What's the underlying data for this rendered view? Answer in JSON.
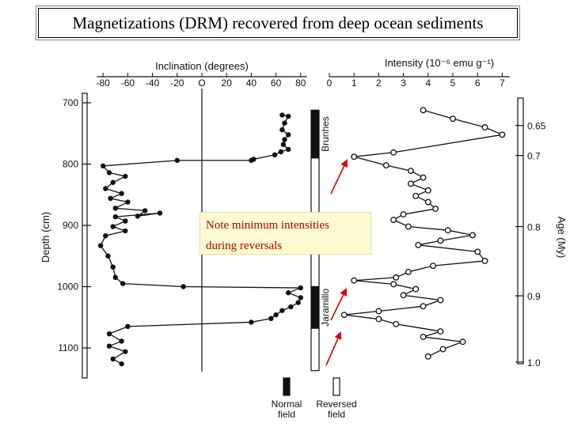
{
  "title": "Magnetizations (DRM) recovered from deep ocean sediments",
  "note": {
    "line1": "Note minimum intensities",
    "line2": "during reversals"
  },
  "chart_data": [
    {
      "type": "line",
      "title": "",
      "xlabel": "Inclination (degrees)",
      "ylabel": "Depth (cm)",
      "xlim": [
        -90,
        90
      ],
      "ylim": [
        700,
        1130
      ],
      "x_ticks": [
        -80,
        -60,
        -40,
        -20,
        0,
        20,
        40,
        60,
        80
      ],
      "x_tick_labels": [
        "-80",
        "-60",
        "-40",
        "-20",
        "O",
        "20",
        "40",
        "60",
        "80"
      ],
      "y_ticks": [
        700,
        800,
        900,
        1000,
        1100
      ],
      "series": [
        {
          "points": [
            [
              65,
              720
            ],
            [
              70,
              722
            ],
            [
              67,
              733
            ],
            [
              65,
              744
            ],
            [
              70,
              752
            ],
            [
              67,
              760
            ],
            [
              66,
              768
            ],
            [
              70,
              776
            ],
            [
              64,
              780
            ],
            [
              59,
              785
            ],
            [
              42,
              792
            ],
            [
              40,
              794
            ],
            [
              -20,
              794
            ],
            [
              -80,
              803
            ],
            [
              -75,
              814
            ],
            [
              -62,
              820
            ],
            [
              -72,
              830
            ],
            [
              -78,
              840
            ],
            [
              -65,
              848
            ],
            [
              -74,
              856
            ],
            [
              -60,
              862
            ],
            [
              -70,
              872
            ],
            [
              -46,
              876
            ],
            [
              -52,
              885
            ],
            [
              -34,
              880
            ],
            [
              -70,
              886
            ],
            [
              -62,
              893
            ],
            [
              -72,
              902
            ],
            [
              -62,
              909
            ],
            [
              -78,
              917
            ],
            [
              -82,
              933
            ],
            [
              -76,
              950
            ],
            [
              -72,
              968
            ],
            [
              -70,
              985
            ],
            [
              -64,
              995
            ],
            [
              -15,
              1000
            ],
            [
              80,
              1002
            ],
            [
              70,
              1010
            ],
            [
              80,
              1018
            ],
            [
              78,
              1026
            ],
            [
              72,
              1033
            ],
            [
              65,
              1039
            ],
            [
              60,
              1046
            ],
            [
              56,
              1052
            ],
            [
              40,
              1058
            ],
            [
              -60,
              1065
            ],
            [
              -75,
              1077
            ],
            [
              -65,
              1089
            ],
            [
              -75,
              1097
            ],
            [
              -62,
              1106
            ],
            [
              -72,
              1118
            ],
            [
              -65,
              1126
            ]
          ]
        }
      ]
    },
    {
      "type": "line",
      "title": "",
      "xlabel": "Intensity (10⁻⁶ emu g⁻¹)",
      "xlim": [
        0,
        7.3
      ],
      "ylim": [
        700,
        1130
      ],
      "x_ticks": [
        0,
        1,
        2,
        3,
        4,
        5,
        6,
        7
      ],
      "x_tick_labels": [
        "0",
        "1",
        "2",
        "3",
        "4",
        "5",
        "6",
        "7"
      ],
      "series": [
        {
          "points": [
            [
              3.8,
              712
            ],
            [
              5.0,
              726
            ],
            [
              6.3,
              740
            ],
            [
              7.0,
              752
            ],
            [
              2.6,
              781
            ],
            [
              1.0,
              788
            ],
            [
              2.3,
              802
            ],
            [
              3.3,
              811
            ],
            [
              3.8,
              822
            ],
            [
              3.3,
              832
            ],
            [
              4.0,
              843
            ],
            [
              3.5,
              852
            ],
            [
              4.0,
              862
            ],
            [
              4.3,
              873
            ],
            [
              3.0,
              882
            ],
            [
              2.6,
              891
            ],
            [
              3.2,
              902
            ],
            [
              4.8,
              908
            ],
            [
              5.8,
              916
            ],
            [
              4.5,
              925
            ],
            [
              3.6,
              932
            ],
            [
              6.0,
              943
            ],
            [
              6.3,
              958
            ],
            [
              4.2,
              966
            ],
            [
              3.2,
              976
            ],
            [
              2.7,
              985
            ],
            [
              1.0,
              990
            ],
            [
              2.6,
              996
            ],
            [
              3.5,
              1004
            ],
            [
              3.0,
              1014
            ],
            [
              4.5,
              1022
            ],
            [
              3.8,
              1032
            ],
            [
              2.0,
              1040
            ],
            [
              0.6,
              1046
            ],
            [
              2.0,
              1053
            ],
            [
              2.7,
              1061
            ],
            [
              4.5,
              1073
            ],
            [
              3.8,
              1082
            ],
            [
              5.4,
              1090
            ],
            [
              4.6,
              1102
            ],
            [
              4.0,
              1114
            ]
          ]
        }
      ]
    },
    {
      "type": "table",
      "title": "",
      "polarity_column": {
        "label": "",
        "segments": [
          {
            "from": 712,
            "to": 790,
            "polarity": "normal",
            "label": "Brunhes"
          },
          {
            "from": 790,
            "to": 1000,
            "polarity": "reversed",
            "label": ""
          },
          {
            "from": 1000,
            "to": 1068,
            "polarity": "normal",
            "label": "Jaramillo"
          },
          {
            "from": 1068,
            "to": 1137,
            "polarity": "reversed",
            "label": ""
          }
        ]
      },
      "age_axis": {
        "label": "Age (My)",
        "ticks": [
          {
            "label": "0.65",
            "depth": 737
          },
          {
            "label": "0.7",
            "depth": 786
          },
          {
            "label": "0.8",
            "depth": 902
          },
          {
            "label": "0.9",
            "depth": 1015
          },
          {
            "label": "1.0",
            "depth": 1123
          }
        ]
      },
      "legend": [
        {
          "label_line1": "Normal",
          "label_line2": "field",
          "polarity": "normal"
        },
        {
          "label_line1": "Reversed",
          "label_line2": "field",
          "polarity": "reversed"
        }
      ]
    }
  ],
  "colors": {
    "arrow": "#e00000",
    "ink": "#111111",
    "note_bg": "#fffbd0",
    "note_text": "#b00000"
  }
}
